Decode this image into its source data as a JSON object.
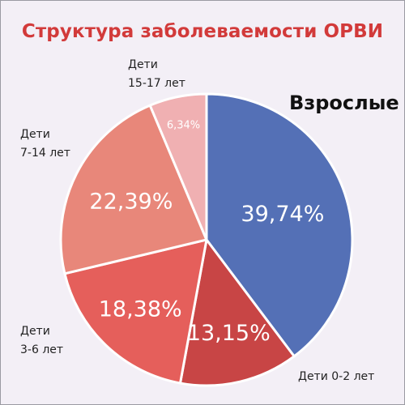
{
  "chart_data": {
    "type": "pie",
    "title": "Структура заболеваемости ОРВИ",
    "slices": [
      {
        "label": "Взрослые",
        "label_lines": [
          "Взрослые"
        ],
        "value": 39.74,
        "display": "39,74%",
        "color": "#5470b6"
      },
      {
        "label": "Дети 0-2 лет",
        "label_lines": [
          "Дети 0-2 лет"
        ],
        "value": 13.15,
        "display": "13,15%",
        "color": "#c84545"
      },
      {
        "label": "Дети 3-6 лет",
        "label_lines": [
          "Дети",
          "3-6 лет"
        ],
        "value": 18.38,
        "display": "18,38%",
        "color": "#e55f5b"
      },
      {
        "label": "Дети 7-14 лет",
        "label_lines": [
          "Дети",
          "7-14 лет"
        ],
        "value": 22.39,
        "display": "22,39%",
        "color": "#e8877a"
      },
      {
        "label": "Дети 15-17 лет",
        "label_lines": [
          "Дети",
          "15-17 лет"
        ],
        "value": 6.34,
        "display": "6,34%",
        "color": "#f0b0b2"
      }
    ],
    "start_direction": "top",
    "direction": "clockwise",
    "legend": "none"
  }
}
